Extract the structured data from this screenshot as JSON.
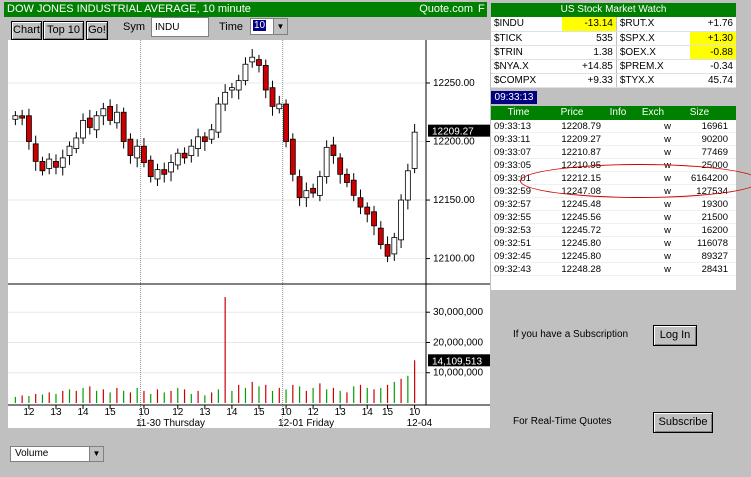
{
  "title": "DOW JONES INDUSTRIAL AVERAGE",
  "interval_label": ", 10 minute",
  "source": "Quote.com",
  "source_flag": "F",
  "toolbar": {
    "chart_label": "Chart",
    "top10_label": "Top 10",
    "go_label": "Go!",
    "sym_label": "Sym",
    "sym_value": "INDU",
    "time_label": "Time",
    "time_value": "10"
  },
  "watch": {
    "title": "US Stock Market Watch",
    "rows": [
      {
        "s1": "$INDU",
        "v1": "-13.14",
        "h1": true,
        "s2": "$RUT.X",
        "v2": "+1.76",
        "h2": false
      },
      {
        "s1": "$TICK",
        "v1": "535",
        "h1": false,
        "s2": "$SPX.X",
        "v2": "+1.30",
        "h2": true
      },
      {
        "s1": "$TRIN",
        "v1": "1.38",
        "h1": false,
        "s2": "$OEX.X",
        "v2": "-0.88",
        "h2": true
      },
      {
        "s1": "$NYA.X",
        "v1": "+14.85",
        "h1": false,
        "s2": "$PREM.X",
        "v2": "-0.34",
        "h2": false
      },
      {
        "s1": "$COMPX",
        "v1": "+9.33",
        "h1": false,
        "s2": "$TYX.X",
        "v2": "45.74",
        "h2": false
      }
    ]
  },
  "current_time": "09:33:13",
  "time_sales": {
    "headers": [
      "Time",
      "Price",
      "Info",
      "Exch",
      "Size"
    ],
    "rows": [
      [
        "09:33:13",
        "12208.79",
        "",
        "w",
        "16961"
      ],
      [
        "09:33:11",
        "12209.27",
        "",
        "w",
        "90200"
      ],
      [
        "09:33:07",
        "12210.87",
        "",
        "w",
        "77469"
      ],
      [
        "09:33:05",
        "12210.95",
        "",
        "w",
        "25000"
      ],
      [
        "09:33:01",
        "12212.15",
        "",
        "w",
        "6164200"
      ],
      [
        "09:32:59",
        "12247.08",
        "",
        "w",
        "127534"
      ],
      [
        "09:32:57",
        "12245.48",
        "",
        "w",
        "19300"
      ],
      [
        "09:32:55",
        "12245.56",
        "",
        "w",
        "21500"
      ],
      [
        "09:32:53",
        "12245.72",
        "",
        "w",
        "16200"
      ],
      [
        "09:32:51",
        "12245.80",
        "",
        "w",
        "116078"
      ],
      [
        "09:32:45",
        "12245.80",
        "",
        "w",
        "89327"
      ],
      [
        "09:32:43",
        "12248.28",
        "",
        "w",
        "28431"
      ]
    ]
  },
  "subscription": {
    "text": "If you have a Subscription",
    "login_label": "Log In",
    "realtime_text": "For Real-Time Quotes",
    "subscribe_label": "Subscribe"
  },
  "lower_select": "Volume",
  "colors": {
    "up": "#ffffff",
    "down": "#cc0000",
    "volume": "#00a000",
    "accent": "#008000"
  },
  "chart_data": {
    "type": "candlestick",
    "price_ticks": [
      "12250.00",
      "12200.00",
      "12150.00",
      "12100.00"
    ],
    "price_tick_values": [
      12250,
      12200,
      12150,
      12100
    ],
    "last_price": "12209.27",
    "price_range": [
      12080,
      12285
    ],
    "volume_ticks": [
      "30,000,000",
      "20,000,000",
      "10,000,000"
    ],
    "volume_tick_values": [
      30000000,
      20000000,
      10000000
    ],
    "last_volume": "14,109,513",
    "volume_range": [
      0,
      38000000
    ],
    "x_tick_labels": [
      "12",
      "13",
      "14",
      "15",
      "10",
      "12",
      "13",
      "14",
      "15",
      "10",
      "12",
      "13",
      "14",
      "15",
      "10"
    ],
    "x_tick_bars": [
      2,
      6,
      10,
      14,
      19,
      24,
      28,
      32,
      36,
      40,
      44,
      48,
      52,
      55,
      59
    ],
    "day_labels": [
      {
        "label": "11-30 Thursday",
        "bar": 19
      },
      {
        "label": "12-01 Friday",
        "bar": 40
      },
      {
        "label": "12-04",
        "bar": 59
      }
    ],
    "day_separator_bars": [
      18.5,
      39.5
    ],
    "closes": [
      12222,
      12220,
      12200,
      12183,
      12175,
      12185,
      12178,
      12186,
      12196,
      12203,
      12218,
      12212,
      12222,
      12228,
      12218,
      12225,
      12200,
      12188,
      12196,
      12182,
      12170,
      12176,
      12172,
      12182,
      12190,
      12186,
      12196,
      12204,
      12200,
      12210,
      12232,
      12242,
      12246,
      12252,
      12266,
      12272,
      12265,
      12244,
      12230,
      12232,
      12200,
      12172,
      12152,
      12158,
      12156,
      12170,
      12195,
      12188,
      12172,
      12165,
      12154,
      12144,
      12138,
      12128,
      12112,
      12102,
      12118,
      12150,
      12175,
      12208
    ],
    "volumes": [
      2000000,
      2500000,
      2300000,
      3000000,
      2800000,
      3500000,
      3000000,
      4000000,
      4500000,
      4000000,
      5000000,
      5500000,
      4000000,
      4500000,
      3500000,
      5000000,
      4000000,
      3500000,
      5000000,
      4000000,
      3000000,
      4500000,
      3500000,
      4000000,
      5000000,
      4500000,
      3000000,
      4000000,
      2500000,
      3500000,
      4500000,
      35000000,
      4000000,
      6000000,
      5000000,
      7000000,
      5500000,
      6000000,
      4000000,
      5000000,
      4500000,
      6000000,
      5500000,
      4000000,
      5000000,
      6500000,
      4500000,
      5000000,
      4000000,
      3500000,
      5500000,
      6000000,
      5000000,
      4500000,
      5000000,
      6000000,
      7000000,
      8000000,
      9000000,
      14109513
    ]
  }
}
